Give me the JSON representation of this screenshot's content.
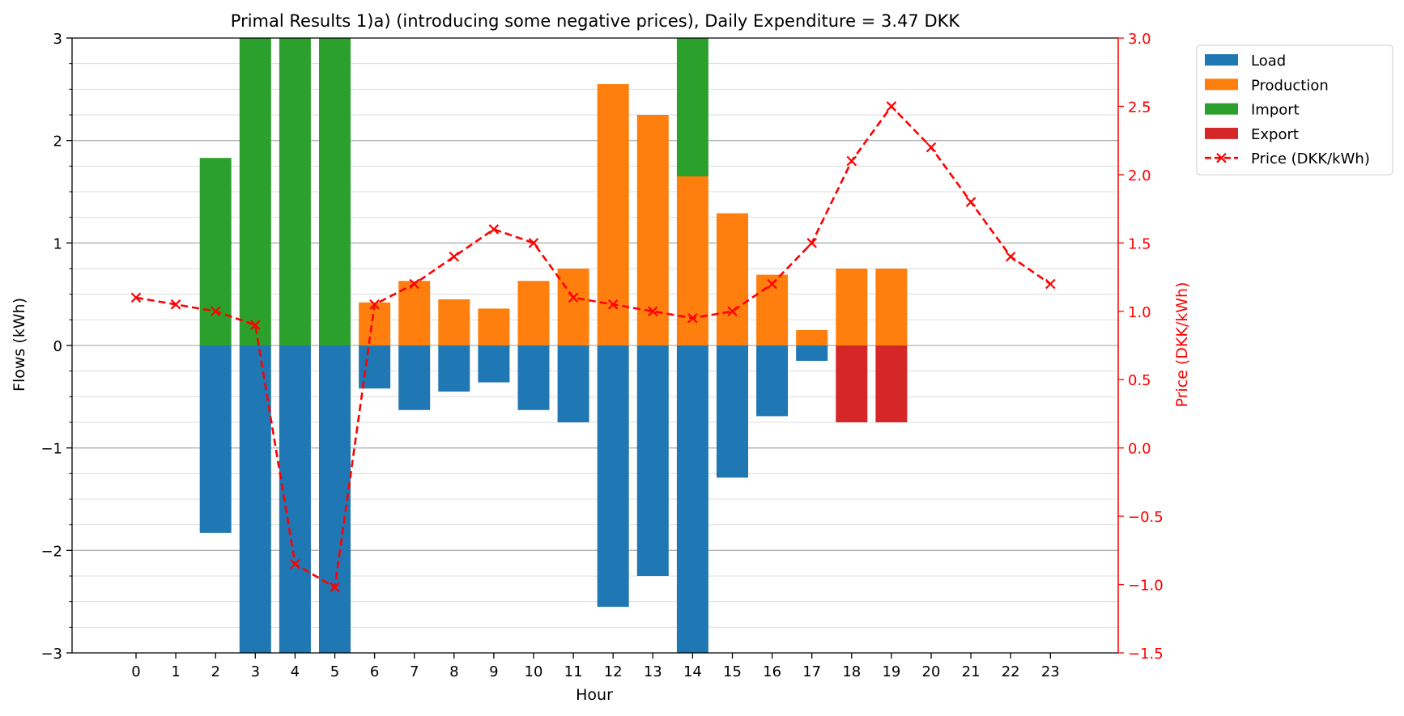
{
  "chart_data": {
    "type": "bar",
    "title": "Primal Results 1)a) (introducing some negative prices), Daily Expenditure = 3.47 DKK",
    "xlabel": "Hour",
    "ylabel": "Flows (kWh)",
    "y2label": "Price (DKK/kWh)",
    "categories": [
      "0",
      "1",
      "2",
      "3",
      "4",
      "5",
      "6",
      "7",
      "8",
      "9",
      "10",
      "11",
      "12",
      "13",
      "14",
      "15",
      "16",
      "17",
      "18",
      "19",
      "20",
      "21",
      "22",
      "23"
    ],
    "ylim": [
      -3,
      3
    ],
    "y2lim": [
      -1.5,
      3.0
    ],
    "yticks": [
      "−3",
      "−2",
      "−1",
      "0",
      "1",
      "2",
      "3"
    ],
    "y2ticks": [
      "−1.5",
      "−1.0",
      "−0.5",
      "0.0",
      "0.5",
      "1.0",
      "1.5",
      "2.0",
      "2.5",
      "3.0"
    ],
    "grid": "horizontal, major and minor on left axis",
    "legend_position": "outside top-right",
    "series": [
      {
        "name": "Load",
        "kind": "bar",
        "color": "#1f77b4",
        "values": [
          0,
          0,
          -1.83,
          -3.3,
          -3.3,
          -3.3,
          -0.42,
          -0.63,
          -0.45,
          -0.36,
          -0.63,
          -0.75,
          -2.55,
          -2.25,
          -3.3,
          -1.29,
          -0.69,
          -0.15,
          0,
          0,
          0,
          0,
          0,
          0
        ]
      },
      {
        "name": "Production",
        "kind": "bar",
        "color": "#ff7f0e",
        "values": [
          0,
          0,
          0,
          0,
          0,
          0,
          0.42,
          0.63,
          0.45,
          0.36,
          0.63,
          0.75,
          2.55,
          2.25,
          1.65,
          1.29,
          0.69,
          0.15,
          0.75,
          0.75,
          0,
          0,
          0,
          0
        ]
      },
      {
        "name": "Import",
        "kind": "bar",
        "color": "#2ca02c",
        "values": [
          0,
          0,
          1.83,
          3.3,
          3.3,
          3.3,
          0,
          0,
          0,
          0,
          0,
          0,
          0,
          0,
          1.65,
          0,
          0,
          0,
          0,
          0,
          0,
          0,
          0,
          0
        ]
      },
      {
        "name": "Export",
        "kind": "bar",
        "color": "#d62728",
        "values": [
          0,
          0,
          0,
          0,
          0,
          0,
          0,
          0,
          0,
          0,
          0,
          0,
          0,
          0,
          0,
          0,
          0,
          0,
          -0.75,
          -0.75,
          0,
          0,
          0,
          0
        ]
      },
      {
        "name": "Price (DKK/kWh)",
        "kind": "line",
        "axis": "right",
        "color": "#ff0000",
        "values": [
          1.1,
          1.05,
          1.0,
          0.9,
          -0.85,
          -1.02,
          1.05,
          1.2,
          1.4,
          1.6,
          1.5,
          1.1,
          1.05,
          1.0,
          0.95,
          1.0,
          1.2,
          1.5,
          2.1,
          2.5,
          2.2,
          1.8,
          1.4,
          1.2
        ]
      }
    ]
  }
}
